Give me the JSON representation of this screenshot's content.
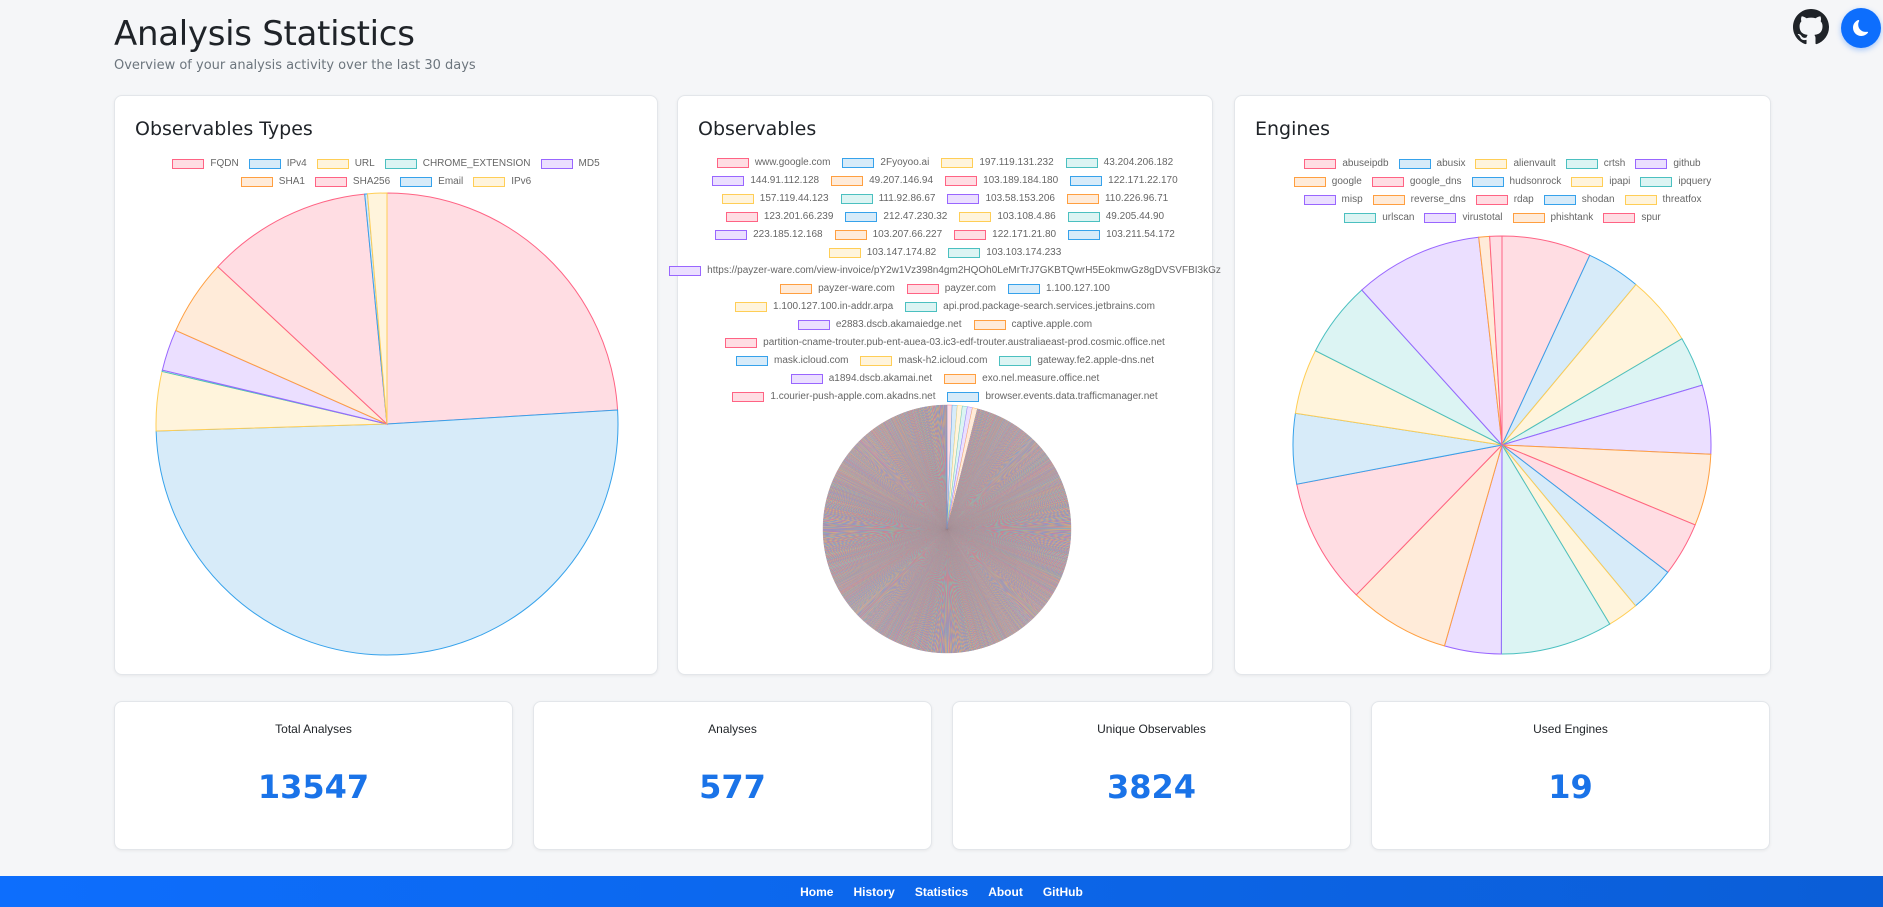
{
  "header": {
    "title": "Analysis Statistics",
    "subtitle": "Overview of your analysis activity over the last 30 days"
  },
  "colors": {
    "accent": "#0d6efd",
    "stat_value": "#1a73e8",
    "palette_fill": [
      "#ffdde3",
      "#d7ebf9",
      "#fff4dc",
      "#dcf4f3",
      "#ebdfff",
      "#ffebd9"
    ],
    "palette_border": [
      "#ff6384",
      "#36a2eb",
      "#ffce56",
      "#4bc0c0",
      "#9966ff",
      "#ff9f40"
    ]
  },
  "icons": {
    "github": "github-icon",
    "theme": "moon-icon"
  },
  "charts": {
    "types": {
      "title": "Observables Types",
      "legend": [
        "FQDN",
        "IPv4",
        "URL",
        "CHROME_EXTENSION",
        "MD5",
        "SHA1",
        "SHA256",
        "Email",
        "IPv6"
      ]
    },
    "observables": {
      "title": "Observables",
      "legend": [
        "www.google.com",
        "2Fyoyoo.ai",
        "197.119.131.232",
        "43.204.206.182",
        "144.91.112.128",
        "49.207.146.94",
        "103.189.184.180",
        "122.171.22.170",
        "157.119.44.123",
        "111.92.86.67",
        "103.58.153.206",
        "110.226.96.71",
        "123.201.66.239",
        "212.47.230.32",
        "103.108.4.86",
        "49.205.44.90",
        "223.185.12.168",
        "103.207.66.227",
        "122.171.21.80",
        "103.211.54.172",
        "103.147.174.82",
        "103.103.174.233",
        "https://payzer-ware.com/view-invoice/pY2w1Vz398n4gm2HQOh0LeMrTrJ7GKBTQwrH5EokmwGz8gDVSVFBI3kGz",
        "payzer-ware.com",
        "payzer.com",
        "1.100.127.100",
        "1.100.127.100.in-addr.arpa",
        "api.prod.package-search.services.jetbrains.com",
        "e2883.dscb.akamaiedge.net",
        "captive.apple.com",
        "partition-cname-trouter.pub-ent-auea-03.ic3-edf-trouter.australiaeast-prod.cosmic.office.net",
        "mask.icloud.com",
        "mask-h2.icloud.com",
        "gateway.fe2.apple-dns.net",
        "a1894.dscb.akamai.net",
        "exo.nel.measure.office.net",
        "1.courier-push-apple.com.akadns.net",
        "browser.events.data.trafficmanager.net"
      ]
    },
    "engines": {
      "title": "Engines",
      "legend": [
        "abuseipdb",
        "abusix",
        "alienvault",
        "crtsh",
        "github",
        "google",
        "google_dns",
        "hudsonrock",
        "ipapi",
        "ipquery",
        "misp",
        "reverse_dns",
        "rdap",
        "shodan",
        "threatfox",
        "urlscan",
        "virustotal",
        "phishtank",
        "spur"
      ]
    }
  },
  "chart_data": [
    {
      "type": "pie",
      "title": "Observables Types",
      "labels": [
        "FQDN",
        "IPv4",
        "URL",
        "CHROME_EXTENSION",
        "MD5",
        "SHA1",
        "SHA256",
        "Email",
        "IPv6"
      ],
      "values": [
        25.0,
        52.5,
        4.3,
        0.1,
        3.0,
        5.5,
        12.0,
        0.2,
        1.4
      ]
    },
    {
      "type": "pie",
      "title": "Observables",
      "slice_count": 3824
    },
    {
      "type": "pie",
      "title": "Engines",
      "labels": [
        "abuseipdb",
        "abusix",
        "alienvault",
        "crtsh",
        "github",
        "google",
        "google_dns",
        "hudsonrock",
        "ipapi",
        "ipquery",
        "misp",
        "reverse_dns",
        "rdap",
        "shodan",
        "threatfox",
        "urlscan",
        "virustotal",
        "phishtank",
        "spur"
      ],
      "values": [
        6.6,
        4.0,
        5.2,
        3.7,
        5.1,
        5.3,
        4.0,
        3.4,
        2.3,
        8.3,
        4.2,
        7.5,
        9.3,
        5.2,
        4.8,
        5.6,
        9.5,
        0.8,
        0.9
      ]
    }
  ],
  "stats": [
    {
      "label": "Total Analyses",
      "value": "13547"
    },
    {
      "label": "Analyses",
      "value": "577"
    },
    {
      "label": "Unique Observables",
      "value": "3824"
    },
    {
      "label": "Used Engines",
      "value": "19"
    }
  ],
  "footer": {
    "links": [
      "Home",
      "History",
      "Statistics",
      "About",
      "GitHub"
    ]
  }
}
